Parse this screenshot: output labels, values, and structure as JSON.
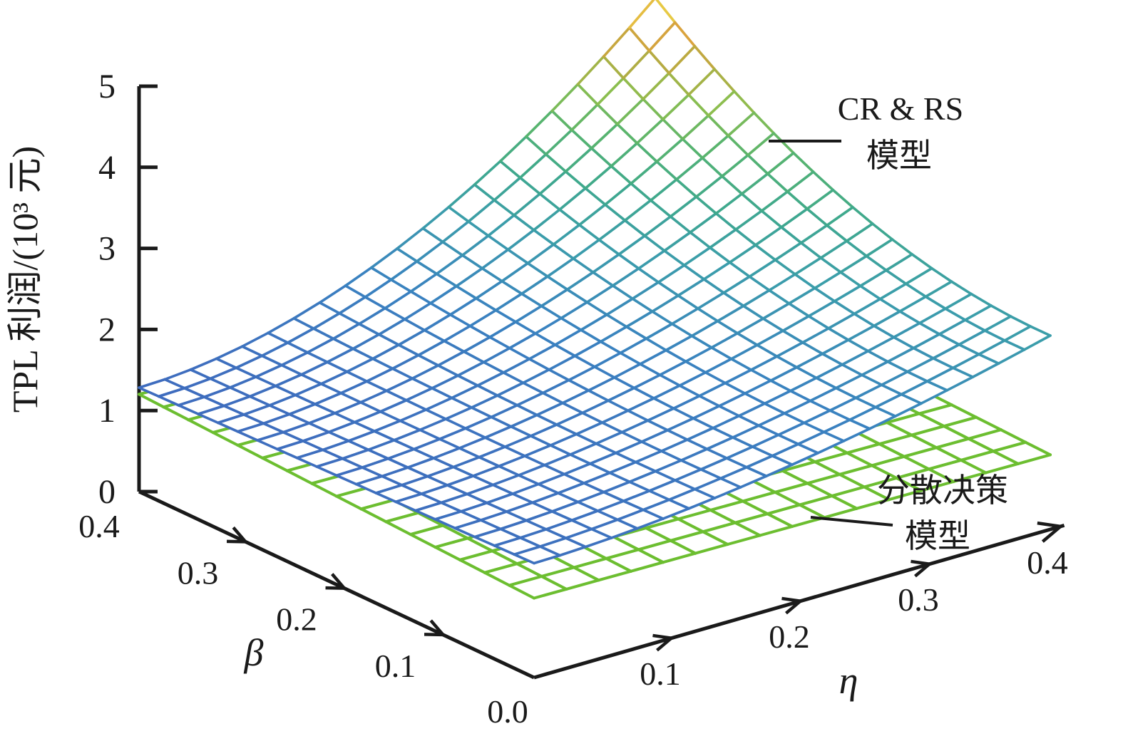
{
  "figure": {
    "background": "#ffffff",
    "axis_color": "#1a1a1a"
  },
  "chart_data": {
    "type": "surface3d-mesh",
    "title": "",
    "zlabel": "TPL 利润/(10³ 元)",
    "axis_beta": {
      "label": "β",
      "origin_label": "0.0",
      "ticks": [
        "0.1",
        "0.2",
        "0.3",
        "0.4"
      ],
      "range": [
        0,
        0.4
      ]
    },
    "axis_eta": {
      "label": "η",
      "ticks": [
        "0.1",
        "0.2",
        "0.3",
        "0.4"
      ],
      "range": [
        0,
        0.4
      ]
    },
    "axis_z": {
      "ticks": [
        "0",
        "1",
        "2",
        "3",
        "4",
        "5"
      ],
      "range": [
        0,
        5
      ]
    },
    "grid": false,
    "surfaces": [
      {
        "id": "crrs",
        "name": "CR & RS 模型",
        "grid": [
          20,
          20
        ],
        "line_width": 3.6,
        "color_mode": "colormap",
        "colormap": [
          [
            0.0,
            "#3e6cbe"
          ],
          [
            0.2,
            "#3a82c0"
          ],
          [
            0.36,
            "#3b9dab"
          ],
          [
            0.5,
            "#3fa98c"
          ],
          [
            0.62,
            "#58b46e"
          ],
          [
            0.73,
            "#8cbe4f"
          ],
          [
            0.82,
            "#b5ab42"
          ],
          [
            0.92,
            "#e0a23c"
          ],
          [
            1.0,
            "#ebe24a"
          ]
        ],
        "z_formula": {
          "base": 1.41,
          "beta_lin": -0.32,
          "eta_pow_coef": 0.98,
          "eta_pow": 1.7,
          "cross_pow_coef": 2.0,
          "cross_pow": 2.0
        },
        "z_samples": {
          "beta": [
            0,
            0.1,
            0.2,
            0.3,
            0.4
          ],
          "eta": [
            0,
            0.1,
            0.2,
            0.3,
            0.4
          ],
          "z": [
            [
              1.41,
              1.5,
              1.71,
              2.01,
              2.39
            ],
            [
              1.38,
              1.48,
              1.71,
              2.05,
              2.48
            ],
            [
              1.35,
              1.47,
              1.77,
              2.23,
              2.83
            ],
            [
              1.31,
              1.48,
              1.9,
              2.55,
              3.42
            ],
            [
              1.28,
              1.5,
              2.08,
              3.01,
              4.26
            ]
          ]
        }
      },
      {
        "id": "decentralized",
        "name": "分散决策 模型",
        "grid": [
          16,
          16
        ],
        "line_width": 4.0,
        "color_mode": "solid",
        "color": "#6cbe30",
        "z_formula": {
          "base": 0.98,
          "beta_lin": 0.55,
          "eta_lin": -0.15,
          "cross_lin": -0.3
        },
        "z_samples": {
          "beta": [
            0,
            0.1,
            0.2,
            0.3,
            0.4
          ],
          "eta": [
            0,
            0.1,
            0.2,
            0.3,
            0.4
          ],
          "z": [
            [
              0.98,
              0.97,
              0.95,
              0.94,
              0.92
            ],
            [
              1.04,
              1.02,
              1.0,
              0.98,
              0.96
            ],
            [
              1.09,
              1.07,
              1.05,
              1.03,
              1.01
            ],
            [
              1.15,
              1.12,
              1.1,
              1.07,
              1.05
            ],
            [
              1.2,
              1.17,
              1.15,
              1.12,
              1.09
            ]
          ]
        }
      }
    ],
    "annotations": [
      {
        "id": "crrs-label",
        "lines": [
          "CR & RS",
          "模型"
        ]
      },
      {
        "id": "decentralized-label",
        "lines": [
          "分散决策",
          "模型"
        ]
      }
    ],
    "view": {
      "origin": [
        749,
        951
      ],
      "u": [
        724,
        -208
      ],
      "v": [
        -554,
        -261
      ],
      "zscale": 113.8
    }
  }
}
